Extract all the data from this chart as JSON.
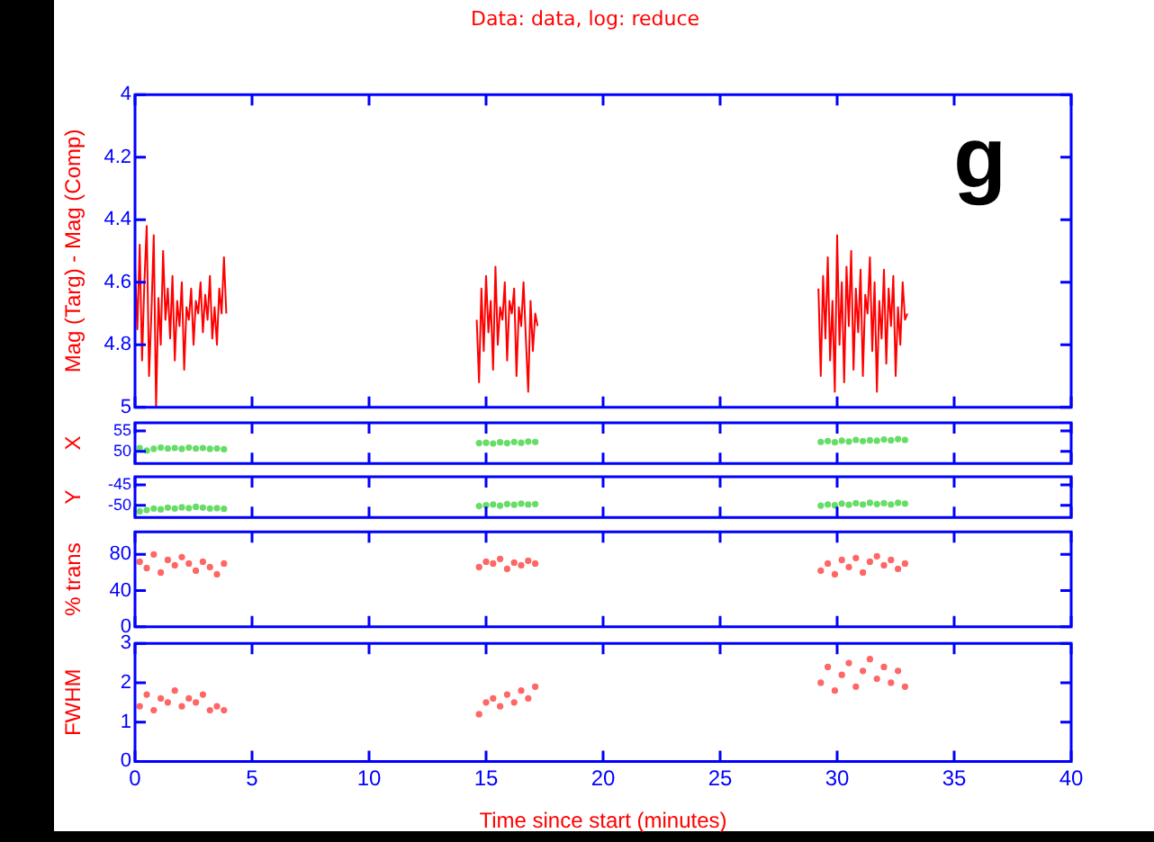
{
  "chart_data": [
    {
      "type": "line",
      "title": "Data: data, log: reduce",
      "ylabel": "Mag (Targ) - Mag (Comp)",
      "annotations": [
        "g"
      ],
      "marker": "none",
      "line_style": "solid",
      "legend": false,
      "tick_labels": "y",
      "xlim": [
        0,
        40
      ],
      "xticks": [
        0,
        5,
        10,
        15,
        20,
        25,
        30,
        35,
        40
      ],
      "ylim": [
        5,
        4
      ],
      "yticks": [
        4,
        4.2,
        4.4,
        4.6,
        4.8,
        5
      ],
      "series": [
        {
          "color": "#ff0000",
          "x": [
            0,
            0.1,
            0.2,
            0.3,
            0.4,
            0.5,
            0.6,
            0.7,
            0.8,
            0.9,
            1.0,
            1.1,
            1.2,
            1.3,
            1.4,
            1.5,
            1.6,
            1.7,
            1.8,
            1.9,
            2.0,
            2.1,
            2.2,
            2.3,
            2.4,
            2.5,
            2.6,
            2.7,
            2.8,
            2.9,
            3.0,
            3.1,
            3.2,
            3.3,
            3.4,
            3.5,
            3.6,
            3.7,
            3.8,
            3.9
          ],
          "values": [
            4.55,
            4.75,
            4.48,
            4.85,
            4.6,
            4.42,
            4.9,
            4.7,
            4.45,
            5.0,
            4.65,
            4.8,
            4.5,
            4.72,
            4.62,
            4.78,
            4.58,
            4.85,
            4.66,
            4.74,
            4.6,
            4.88,
            4.68,
            4.72,
            4.62,
            4.8,
            4.66,
            4.7,
            4.6,
            4.76,
            4.64,
            4.72,
            4.58,
            4.78,
            4.68,
            4.8,
            4.62,
            4.7,
            4.52,
            4.7
          ]
        },
        {
          "color": "#ff0000",
          "x": [
            14.6,
            14.7,
            14.8,
            14.9,
            15.0,
            15.1,
            15.2,
            15.3,
            15.4,
            15.5,
            15.6,
            15.7,
            15.8,
            15.9,
            16.0,
            16.1,
            16.2,
            16.3,
            16.4,
            16.5,
            16.6,
            16.7,
            16.8,
            16.9,
            17.0,
            17.1,
            17.2
          ],
          "values": [
            4.72,
            4.92,
            4.62,
            4.82,
            4.58,
            4.76,
            4.66,
            4.88,
            4.55,
            4.8,
            4.68,
            4.72,
            4.6,
            4.85,
            4.66,
            4.7,
            4.62,
            4.9,
            4.68,
            4.74,
            4.6,
            4.78,
            4.95,
            4.66,
            4.82,
            4.7,
            4.74
          ]
        },
        {
          "color": "#ff0000",
          "x": [
            29.2,
            29.3,
            29.4,
            29.5,
            29.6,
            29.7,
            29.8,
            29.9,
            30.0,
            30.1,
            30.2,
            30.3,
            30.4,
            30.5,
            30.6,
            30.7,
            30.8,
            30.9,
            31.0,
            31.1,
            31.2,
            31.3,
            31.4,
            31.5,
            31.6,
            31.7,
            31.8,
            31.9,
            32.0,
            32.1,
            32.2,
            32.3,
            32.4,
            32.5,
            32.6,
            32.7,
            32.8,
            32.9,
            33.0
          ],
          "values": [
            4.62,
            4.9,
            4.58,
            4.78,
            4.52,
            4.85,
            4.66,
            4.95,
            4.45,
            4.8,
            4.6,
            4.92,
            4.55,
            4.74,
            4.5,
            4.88,
            4.62,
            4.76,
            4.56,
            4.9,
            4.64,
            4.7,
            4.52,
            4.82,
            4.6,
            4.95,
            4.66,
            4.78,
            4.56,
            4.86,
            4.62,
            4.74,
            4.58,
            4.9,
            4.68,
            4.8,
            4.6,
            4.72,
            4.7
          ]
        }
      ]
    },
    {
      "type": "scatter",
      "ylabel": "X",
      "marker": "circle",
      "legend": false,
      "tick_labels": "y",
      "xlim": [
        0,
        40
      ],
      "xticks": [
        0,
        5,
        10,
        15,
        20,
        25,
        30,
        35,
        40
      ],
      "ylim": [
        47,
        57
      ],
      "yticks": [
        50,
        55
      ],
      "series": [
        {
          "color": "#66dd66",
          "x": [
            0.2,
            0.5,
            0.8,
            1.1,
            1.4,
            1.7,
            2.0,
            2.3,
            2.6,
            2.9,
            3.2,
            3.5,
            3.8,
            14.7,
            15.0,
            15.3,
            15.6,
            15.9,
            16.2,
            16.5,
            16.8,
            17.1,
            29.3,
            29.6,
            29.9,
            30.2,
            30.5,
            30.8,
            31.1,
            31.4,
            31.7,
            32.0,
            32.3,
            32.6,
            32.9
          ],
          "values": [
            50.8,
            50.2,
            50.6,
            50.9,
            50.7,
            50.8,
            50.6,
            50.9,
            50.7,
            50.8,
            50.6,
            50.7,
            50.5,
            52.0,
            52.1,
            51.9,
            52.2,
            52.0,
            52.3,
            52.1,
            52.4,
            52.3,
            52.3,
            52.5,
            52.2,
            52.6,
            52.4,
            52.8,
            52.5,
            52.7,
            52.6,
            52.9,
            52.7,
            53.0,
            52.8
          ]
        }
      ]
    },
    {
      "type": "scatter",
      "ylabel": "Y",
      "marker": "circle",
      "legend": false,
      "tick_labels": "y",
      "xlim": [
        0,
        40
      ],
      "xticks": [
        0,
        5,
        10,
        15,
        20,
        25,
        30,
        35,
        40
      ],
      "ylim": [
        -53,
        -43
      ],
      "yticks": [
        -50,
        -45
      ],
      "series": [
        {
          "color": "#66dd66",
          "x": [
            0.2,
            0.5,
            0.8,
            1.1,
            1.4,
            1.7,
            2.0,
            2.3,
            2.6,
            2.9,
            3.2,
            3.5,
            3.8,
            14.7,
            15.0,
            15.3,
            15.6,
            15.9,
            16.2,
            16.5,
            16.8,
            17.1,
            29.3,
            29.6,
            29.9,
            30.2,
            30.5,
            30.8,
            31.1,
            31.4,
            31.7,
            32.0,
            32.3,
            32.6,
            32.9
          ],
          "values": [
            -51.5,
            -51.2,
            -50.8,
            -51.0,
            -50.6,
            -50.8,
            -50.5,
            -50.7,
            -50.4,
            -50.6,
            -50.8,
            -50.7,
            -50.9,
            -50.2,
            -50.0,
            -49.8,
            -50.1,
            -49.7,
            -49.9,
            -49.6,
            -49.8,
            -49.7,
            -50.1,
            -49.8,
            -50.0,
            -49.6,
            -49.9,
            -49.5,
            -49.8,
            -49.4,
            -49.7,
            -49.5,
            -49.8,
            -49.4,
            -49.6
          ]
        }
      ]
    },
    {
      "type": "scatter",
      "ylabel": "% trans",
      "marker": "circle",
      "legend": false,
      "tick_labels": "y",
      "xlim": [
        0,
        40
      ],
      "xticks": [
        0,
        5,
        10,
        15,
        20,
        25,
        30,
        35,
        40
      ],
      "ylim": [
        0,
        105
      ],
      "yticks": [
        0,
        40,
        80
      ],
      "series": [
        {
          "color": "#ff6666",
          "x": [
            0.2,
            0.5,
            0.8,
            1.1,
            1.4,
            1.7,
            2.0,
            2.3,
            2.6,
            2.9,
            3.2,
            3.5,
            3.8,
            14.7,
            15.0,
            15.3,
            15.6,
            15.9,
            16.2,
            16.5,
            16.8,
            17.1,
            29.3,
            29.6,
            29.9,
            30.2,
            30.5,
            30.8,
            31.1,
            31.4,
            31.7,
            32.0,
            32.3,
            32.6,
            32.9
          ],
          "values": [
            72,
            65,
            80,
            60,
            74,
            68,
            77,
            70,
            62,
            72,
            66,
            58,
            70,
            66,
            72,
            70,
            75,
            64,
            71,
            68,
            73,
            70,
            62,
            70,
            58,
            74,
            66,
            76,
            60,
            72,
            78,
            68,
            74,
            64,
            70
          ]
        }
      ]
    },
    {
      "type": "scatter",
      "ylabel": "FWHM",
      "xlabel": "Time since start (minutes)",
      "marker": "circle",
      "legend": false,
      "xlim": [
        0,
        40
      ],
      "xticks": [
        0,
        5,
        10,
        15,
        20,
        25,
        30,
        35,
        40
      ],
      "ylim": [
        0,
        3
      ],
      "yticks": [
        0,
        1,
        2,
        3
      ],
      "series": [
        {
          "color": "#ff6666",
          "x": [
            0.2,
            0.5,
            0.8,
            1.1,
            1.4,
            1.7,
            2.0,
            2.3,
            2.6,
            2.9,
            3.2,
            3.5,
            3.8,
            14.7,
            15.0,
            15.3,
            15.6,
            15.9,
            16.2,
            16.5,
            16.8,
            17.1,
            29.3,
            29.6,
            29.9,
            30.2,
            30.5,
            30.8,
            31.1,
            31.4,
            31.7,
            32.0,
            32.3,
            32.6,
            32.9
          ],
          "values": [
            1.4,
            1.7,
            1.3,
            1.6,
            1.5,
            1.8,
            1.4,
            1.6,
            1.5,
            1.7,
            1.3,
            1.4,
            1.3,
            1.2,
            1.5,
            1.6,
            1.4,
            1.7,
            1.5,
            1.8,
            1.6,
            1.9,
            2.0,
            2.4,
            1.8,
            2.2,
            2.5,
            1.9,
            2.3,
            2.6,
            2.1,
            2.4,
            2.0,
            2.3,
            1.9
          ]
        }
      ]
    }
  ]
}
